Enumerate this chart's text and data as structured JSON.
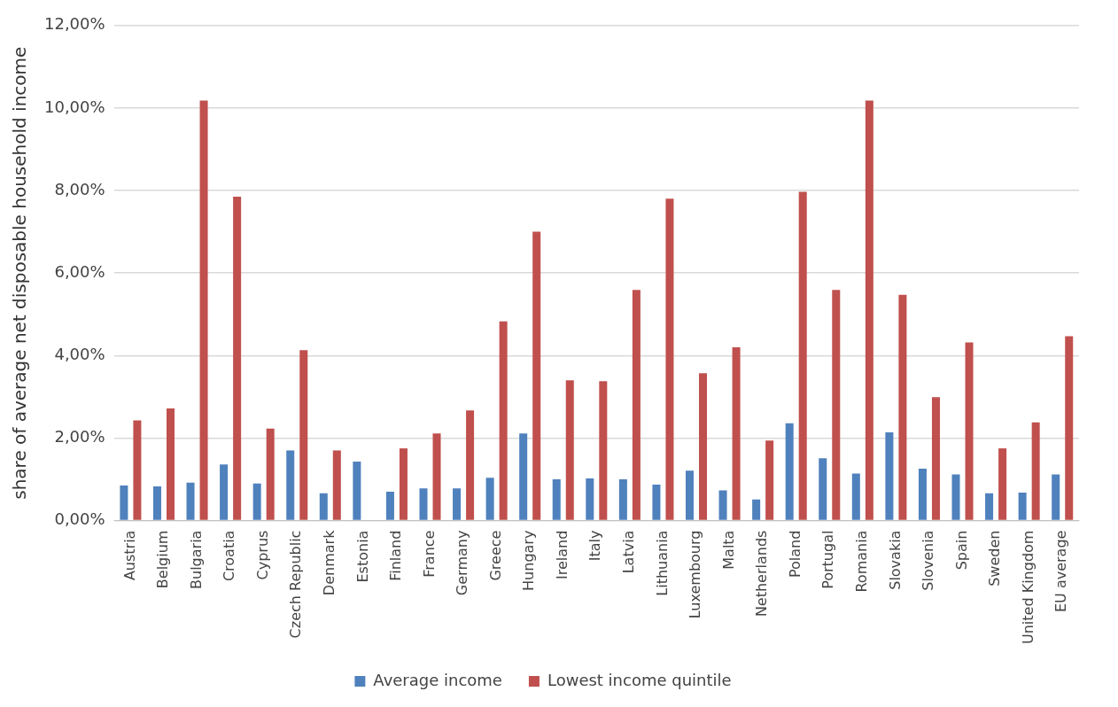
{
  "chart_data": {
    "type": "bar",
    "ylabel": "share of average net disposable household income",
    "categories": [
      "Austria",
      "Belgium",
      "Bulgaria",
      "Croatia",
      "Cyprus",
      "Czech Republic",
      "Denmark",
      "Estonia",
      "Finland",
      "France",
      "Germany",
      "Greece",
      "Hungary",
      "Ireland",
      "Italy",
      "Latvia",
      "Lithuania",
      "Luxembourg",
      "Malta",
      "Netherlands",
      "Poland",
      "Portugal",
      "Romania",
      "Slovakia",
      "Slovenia",
      "Spain",
      "Sweden",
      "United Kingdom",
      "EU average"
    ],
    "series": [
      {
        "name": "Average income",
        "color": "#4f81bd",
        "values": [
          0.85,
          0.83,
          0.92,
          1.36,
          0.9,
          1.7,
          0.66,
          1.43,
          0.7,
          0.78,
          0.78,
          1.04,
          2.11,
          1.0,
          1.02,
          1.0,
          0.87,
          1.21,
          0.73,
          0.51,
          2.36,
          1.51,
          1.14,
          2.14,
          1.26,
          1.12,
          0.66,
          0.68,
          1.12
        ]
      },
      {
        "name": "Lowest income quintile",
        "color": "#c0504d",
        "values": [
          2.43,
          2.72,
          10.18,
          7.85,
          2.23,
          4.13,
          1.7,
          null,
          1.75,
          2.11,
          2.67,
          4.83,
          7.0,
          3.4,
          3.38,
          5.59,
          7.8,
          3.57,
          4.2,
          1.94,
          7.97,
          5.59,
          10.18,
          5.47,
          2.99,
          4.32,
          1.75,
          2.38,
          4.47
        ]
      }
    ],
    "ylim": [
      0,
      12
    ],
    "yticks": [
      {
        "value": 0,
        "label": "0,00%"
      },
      {
        "value": 2,
        "label": "2,00%"
      },
      {
        "value": 4,
        "label": "4,00%"
      },
      {
        "value": 6,
        "label": "6,00%"
      },
      {
        "value": 8,
        "label": "8,00%"
      },
      {
        "value": 10,
        "label": "10,00%"
      },
      {
        "value": 12,
        "label": "12,00%"
      }
    ],
    "grid": "y",
    "legend": "bottom"
  }
}
